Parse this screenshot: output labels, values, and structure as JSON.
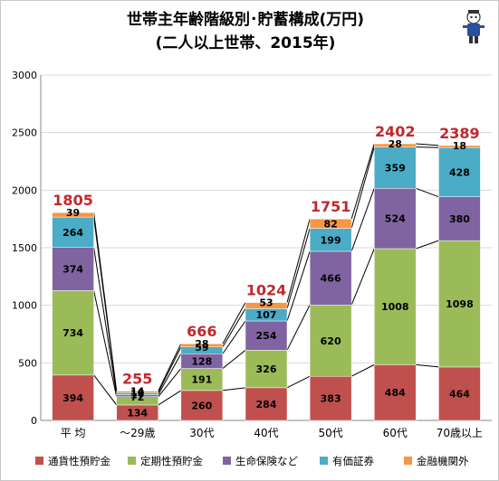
{
  "chart_data": {
    "type": "bar",
    "stacked": true,
    "title": "世帯主年齢階級別･貯蓄構成(万円)",
    "subtitle": "(二人以上世帯、2015年)",
    "categories": [
      "平 均",
      "～29歳",
      "30代",
      "40代",
      "50代",
      "60代",
      "70歳以上"
    ],
    "series": [
      {
        "name": "通貨性預貯金",
        "color": "#c0504d",
        "values": [
          394,
          134,
          260,
          284,
          383,
          484,
          464
        ]
      },
      {
        "name": "定期性預貯金",
        "color": "#9bbb59",
        "values": [
          734,
          72,
          191,
          326,
          620,
          1008,
          1098
        ]
      },
      {
        "name": "生命保険など",
        "color": "#8064a2",
        "values": [
          374,
          17,
          128,
          254,
          466,
          524,
          380
        ]
      },
      {
        "name": "有価証券",
        "color": "#4bacc6",
        "values": [
          264,
          18,
          59,
          107,
          199,
          359,
          428
        ]
      },
      {
        "name": "金融機関外",
        "color": "#f79646",
        "values": [
          39,
          14,
          28,
          53,
          82,
          28,
          18
        ]
      }
    ],
    "totals": [
      1805,
      255,
      666,
      1024,
      1751,
      2402,
      2389
    ],
    "ylim": [
      0,
      3000
    ],
    "yticks": [
      0,
      500,
      1000,
      1500,
      2000,
      2500,
      3000
    ],
    "grid": true,
    "legend_position": "bottom"
  },
  "colors": {
    "total_label": "#c0282d",
    "grid": "#d9d9d9"
  }
}
